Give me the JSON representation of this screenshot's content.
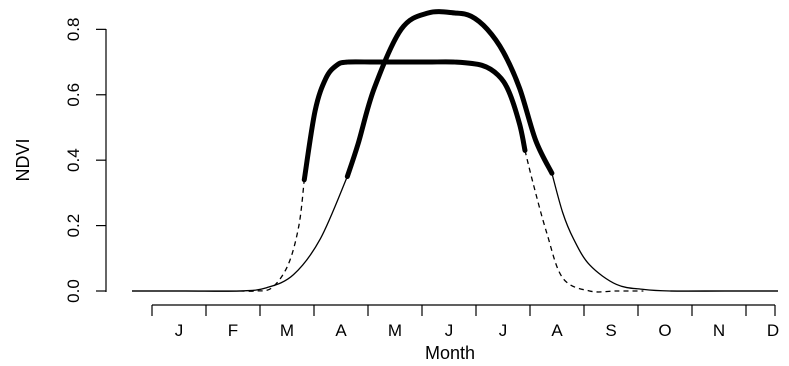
{
  "chart_data": {
    "type": "line",
    "xlabel": "Month",
    "ylabel": "NDVI",
    "xlim": [
      0,
      12
    ],
    "ylim": [
      0,
      0.85
    ],
    "y_ticks": [
      "0.0",
      "0.2",
      "0.4",
      "0.6",
      "0.8"
    ],
    "y_tick_values": [
      0.0,
      0.2,
      0.4,
      0.6,
      0.8
    ],
    "month_labels": [
      "J",
      "F",
      "M",
      "A",
      "M",
      "J",
      "J",
      "A",
      "S",
      "O",
      "N",
      "D"
    ],
    "grid": false,
    "legend": "none",
    "series": [
      {
        "style": "dashed-thin with thick growing-season segment",
        "x": [
          2.0,
          2.3,
          2.6,
          2.9,
          3.1,
          3.2,
          3.4,
          3.6,
          3.8,
          4.0,
          4.5,
          5.0,
          5.5,
          6.0,
          6.5,
          6.8,
          7.0,
          7.2,
          7.3,
          7.45,
          7.7,
          8.0,
          8.5,
          9.0,
          9.5
        ],
        "values": [
          0.0,
          0.0,
          0.01,
          0.08,
          0.2,
          0.34,
          0.55,
          0.65,
          0.69,
          0.7,
          0.7,
          0.7,
          0.7,
          0.7,
          0.69,
          0.66,
          0.61,
          0.51,
          0.43,
          0.33,
          0.18,
          0.04,
          0.0,
          0.0,
          0.0
        ],
        "thick_range": [
          3.2,
          7.3
        ]
      },
      {
        "style": "solid-thin with thick growing-season segment",
        "x": [
          0.0,
          1.0,
          2.0,
          2.5,
          3.0,
          3.5,
          4.0,
          4.2,
          4.5,
          5.0,
          5.5,
          6.0,
          6.3,
          6.6,
          6.9,
          7.2,
          7.5,
          7.8,
          8.0,
          8.2,
          8.5,
          9.0,
          9.5,
          10.0,
          11.0,
          12.0
        ],
        "values": [
          0.0,
          0.0,
          0.0,
          0.01,
          0.05,
          0.16,
          0.35,
          0.45,
          0.62,
          0.8,
          0.85,
          0.85,
          0.84,
          0.8,
          0.73,
          0.62,
          0.46,
          0.36,
          0.24,
          0.16,
          0.08,
          0.02,
          0.005,
          0.0,
          0.0,
          0.0
        ],
        "thick_range": [
          4.0,
          7.8
        ]
      }
    ]
  }
}
